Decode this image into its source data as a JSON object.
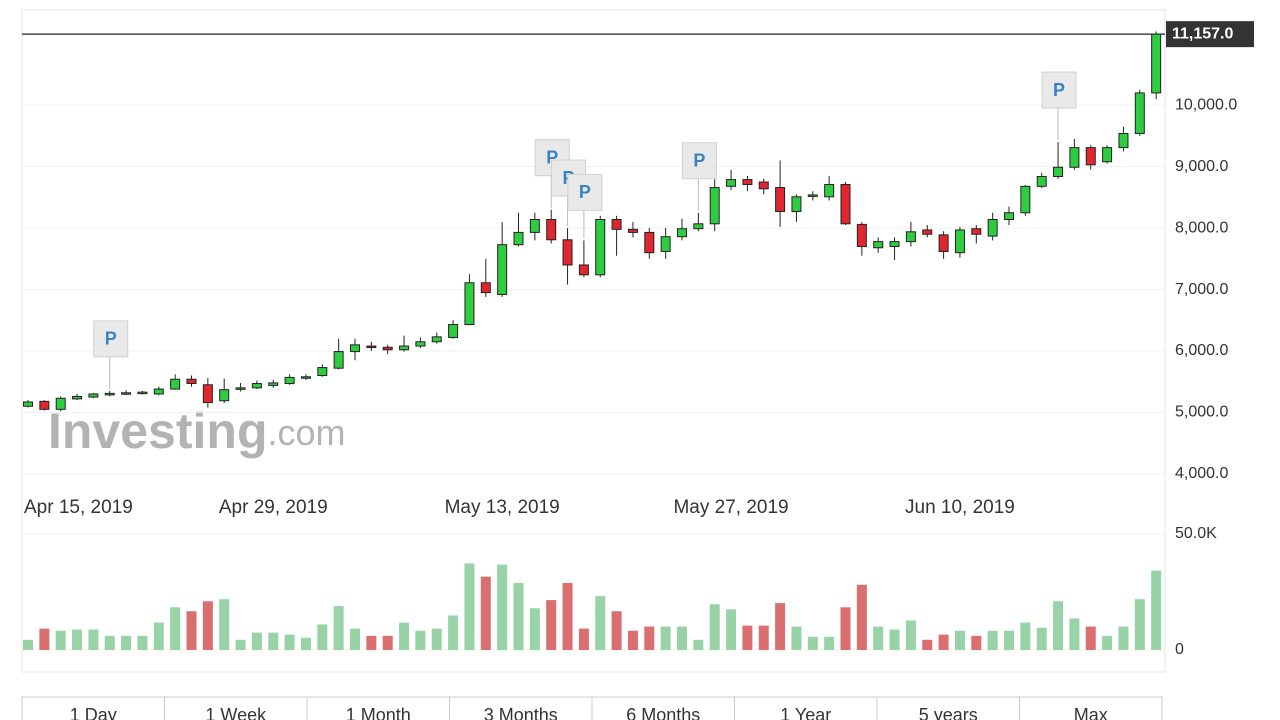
{
  "chart_data": [
    {
      "type": "candlestick",
      "categories": [
        null,
        "Apr 15, 2019",
        null,
        null,
        null,
        null,
        null,
        null,
        null,
        null,
        null,
        null,
        null,
        null,
        null,
        "Apr 29, 2019",
        null,
        null,
        null,
        null,
        null,
        null,
        null,
        null,
        null,
        null,
        null,
        null,
        null,
        "May 13, 2019",
        null,
        null,
        null,
        null,
        null,
        null,
        null,
        null,
        null,
        null,
        null,
        null,
        null,
        "May 27, 2019",
        null,
        null,
        null,
        null,
        null,
        null,
        null,
        null,
        null,
        null,
        null,
        null,
        null,
        "Jun 10, 2019",
        null,
        null,
        null,
        null,
        null,
        null,
        null,
        null,
        null,
        null,
        null,
        null
      ],
      "open": [
        5100,
        5180,
        5050,
        5220,
        5250,
        5290,
        5300,
        5310,
        5300,
        5380,
        5540,
        5450,
        5190,
        5380,
        5400,
        5440,
        5470,
        5560,
        5600,
        5720,
        5990,
        6080,
        6060,
        6020,
        6080,
        6150,
        6220,
        6430,
        7110,
        6920,
        7730,
        7930,
        8140,
        7810,
        7400,
        7240,
        8140,
        7980,
        7930,
        7620,
        7860,
        7990,
        8070,
        8680,
        8790,
        8750,
        8660,
        8270,
        8520,
        8510,
        8710,
        8060,
        7680,
        7700,
        7780,
        7970,
        7890,
        7600,
        7990,
        7870,
        8140,
        8250,
        8680,
        8840,
        8990,
        9310,
        9080,
        9310,
        9540,
        10200
      ],
      "high": [
        5200,
        5200,
        5260,
        5300,
        5320,
        5350,
        5360,
        5350,
        5420,
        5620,
        5600,
        5560,
        5550,
        5480,
        5520,
        5530,
        5620,
        5620,
        5780,
        6200,
        6200,
        6150,
        6100,
        6250,
        6220,
        6300,
        6500,
        7250,
        7500,
        8100,
        8250,
        8250,
        8300,
        8000,
        7800,
        8200,
        8200,
        8100,
        8000,
        8000,
        8150,
        8250,
        8800,
        8950,
        8850,
        8800,
        9100,
        8550,
        8600,
        8850,
        8750,
        8100,
        7850,
        7850,
        8100,
        8050,
        7950,
        8020,
        8050,
        8250,
        8350,
        8700,
        8900,
        9400,
        9450,
        9350,
        9350,
        9650,
        10250,
        11200
      ],
      "low": [
        5080,
        5030,
        5020,
        5200,
        5230,
        5260,
        5280,
        5290,
        5280,
        5370,
        5420,
        5080,
        5150,
        5340,
        5380,
        5400,
        5450,
        5530,
        5580,
        5700,
        5850,
        6000,
        5950,
        5990,
        6050,
        6120,
        6200,
        6420,
        6880,
        6880,
        7700,
        7800,
        7750,
        7080,
        7200,
        7200,
        7550,
        7850,
        7500,
        7500,
        7800,
        7950,
        7950,
        8620,
        8600,
        8550,
        8020,
        8100,
        8450,
        8450,
        8050,
        7550,
        7600,
        7480,
        7700,
        7850,
        7500,
        7520,
        7750,
        7800,
        8050,
        8200,
        8650,
        8800,
        8950,
        8950,
        9050,
        9250,
        9500,
        10100
      ],
      "close": [
        5170,
        5050,
        5230,
        5260,
        5300,
        5310,
        5320,
        5330,
        5380,
        5540,
        5470,
        5160,
        5370,
        5400,
        5470,
        5480,
        5570,
        5580,
        5730,
        5990,
        6100,
        6070,
        6020,
        6080,
        6150,
        6230,
        6430,
        7110,
        6950,
        7730,
        7930,
        8140,
        7810,
        7400,
        7240,
        8140,
        7980,
        7930,
        7600,
        7860,
        7990,
        8070,
        8660,
        8790,
        8710,
        8640,
        8270,
        8510,
        8540,
        8710,
        8070,
        7700,
        7780,
        7780,
        7940,
        7900,
        7620,
        7970,
        7900,
        8140,
        8250,
        8680,
        8840,
        8990,
        9310,
        9030,
        9310,
        9540,
        10200,
        11157
      ],
      "up_color": "#2ecc40",
      "down_color": "#e0262e",
      "ylim": [
        3900,
        11550
      ],
      "yticks": [
        {
          "value": 4000,
          "label": "4,000.0"
        },
        {
          "value": 5000,
          "label": "5,000.0"
        },
        {
          "value": 6000,
          "label": "6,000.0"
        },
        {
          "value": 7000,
          "label": "7,000.0"
        },
        {
          "value": 8000,
          "label": "8,000.0"
        },
        {
          "value": 9000,
          "label": "9,000.0"
        },
        {
          "value": 10000,
          "label": "10,000.0"
        }
      ],
      "last_price": {
        "value": 11157,
        "label": "11,157.0"
      },
      "flags": [
        {
          "category_index": 5,
          "label": "P"
        },
        {
          "category_index": 32,
          "label": "P"
        },
        {
          "category_index": 33,
          "label": "P"
        },
        {
          "category_index": 34,
          "label": "P"
        },
        {
          "category_index": 41,
          "label": "P"
        },
        {
          "category_index": 63,
          "label": "P"
        }
      ],
      "grid": true
    },
    {
      "type": "bar",
      "values": [
        4400,
        9200,
        8300,
        8800,
        8800,
        6100,
        6100,
        6100,
        11800,
        18400,
        16700,
        21000,
        21900,
        4400,
        7500,
        7500,
        6600,
        5300,
        11000,
        18900,
        9200,
        6100,
        6100,
        11800,
        8300,
        9200,
        14900,
        37300,
        31600,
        36800,
        28900,
        18000,
        21500,
        28900,
        9200,
        23200,
        16700,
        8300,
        10100,
        10100,
        10100,
        4400,
        19700,
        17500,
        10500,
        10500,
        20200,
        10100,
        5700,
        5700,
        18400,
        28100,
        10100,
        8800,
        12700,
        4400,
        6600,
        8300,
        6100,
        8300,
        8300,
        11800,
        9600,
        21000,
        13600,
        10100,
        6100,
        10100,
        21900,
        34200
      ],
      "up_color": "#98d3a8",
      "down_color": "#d9706f",
      "ylim": [
        0,
        56000
      ],
      "yticks": [
        0,
        {
          "value": 50000,
          "label": "50.0K"
        }
      ]
    }
  ],
  "watermark": [
    "Investing",
    ".com"
  ],
  "range_buttons": [
    "1 Day",
    "1 Week",
    "1 Month",
    "3 Months",
    "6 Months",
    "1 Year",
    "5 years",
    "Max"
  ]
}
